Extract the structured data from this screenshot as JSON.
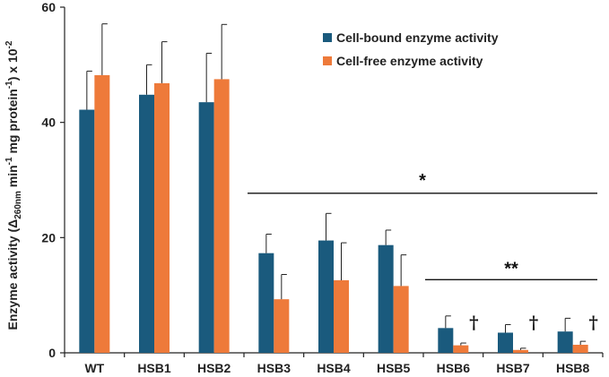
{
  "chart_data": {
    "type": "bar",
    "categories": [
      "WT",
      "HSB1",
      "HSB2",
      "HSB3",
      "HSB4",
      "HSB5",
      "HSB6",
      "HSB7",
      "HSB8"
    ],
    "series": [
      {
        "name": "Cell-bound enzyme activity",
        "color": "#1a5a7d",
        "values": [
          42.2,
          44.8,
          43.5,
          17.3,
          19.5,
          18.7,
          4.3,
          3.5,
          3.7
        ],
        "errors": [
          6.7,
          5.2,
          8.5,
          3.3,
          4.7,
          2.6,
          2.1,
          1.4,
          2.3
        ]
      },
      {
        "name": "Cell-free enzyme activity",
        "color": "#ee7a3a",
        "values": [
          48.2,
          46.8,
          47.5,
          9.3,
          12.6,
          11.6,
          1.3,
          0.5,
          1.4
        ],
        "errors": [
          8.9,
          7.2,
          9.5,
          4.3,
          6.5,
          5.4,
          0.4,
          0.3,
          0.6
        ]
      }
    ],
    "ylabel": {
      "prefix": "Enzyme activity (Δ",
      "sub": "260nm",
      "mid1": " min",
      "sup1": "-1",
      "mid2": " mg protein",
      "sup2": "-1",
      "mid3": ") x 10",
      "sup3": "-2"
    },
    "ylim": [
      0,
      60
    ],
    "yticks": [
      "0",
      "20",
      "40",
      "60"
    ],
    "grid": false,
    "legend_position": "top-right",
    "annotations": {
      "significance_1": {
        "label": "*",
        "from_category": "HSB3",
        "to_category": "HSB8"
      },
      "significance_2": {
        "label": "**",
        "from_category": "HSB6",
        "to_category": "HSB8"
      },
      "daggers": [
        {
          "label": "†",
          "category": "HSB6"
        },
        {
          "label": "†",
          "category": "HSB7"
        },
        {
          "label": "†",
          "category": "HSB8"
        }
      ]
    }
  }
}
